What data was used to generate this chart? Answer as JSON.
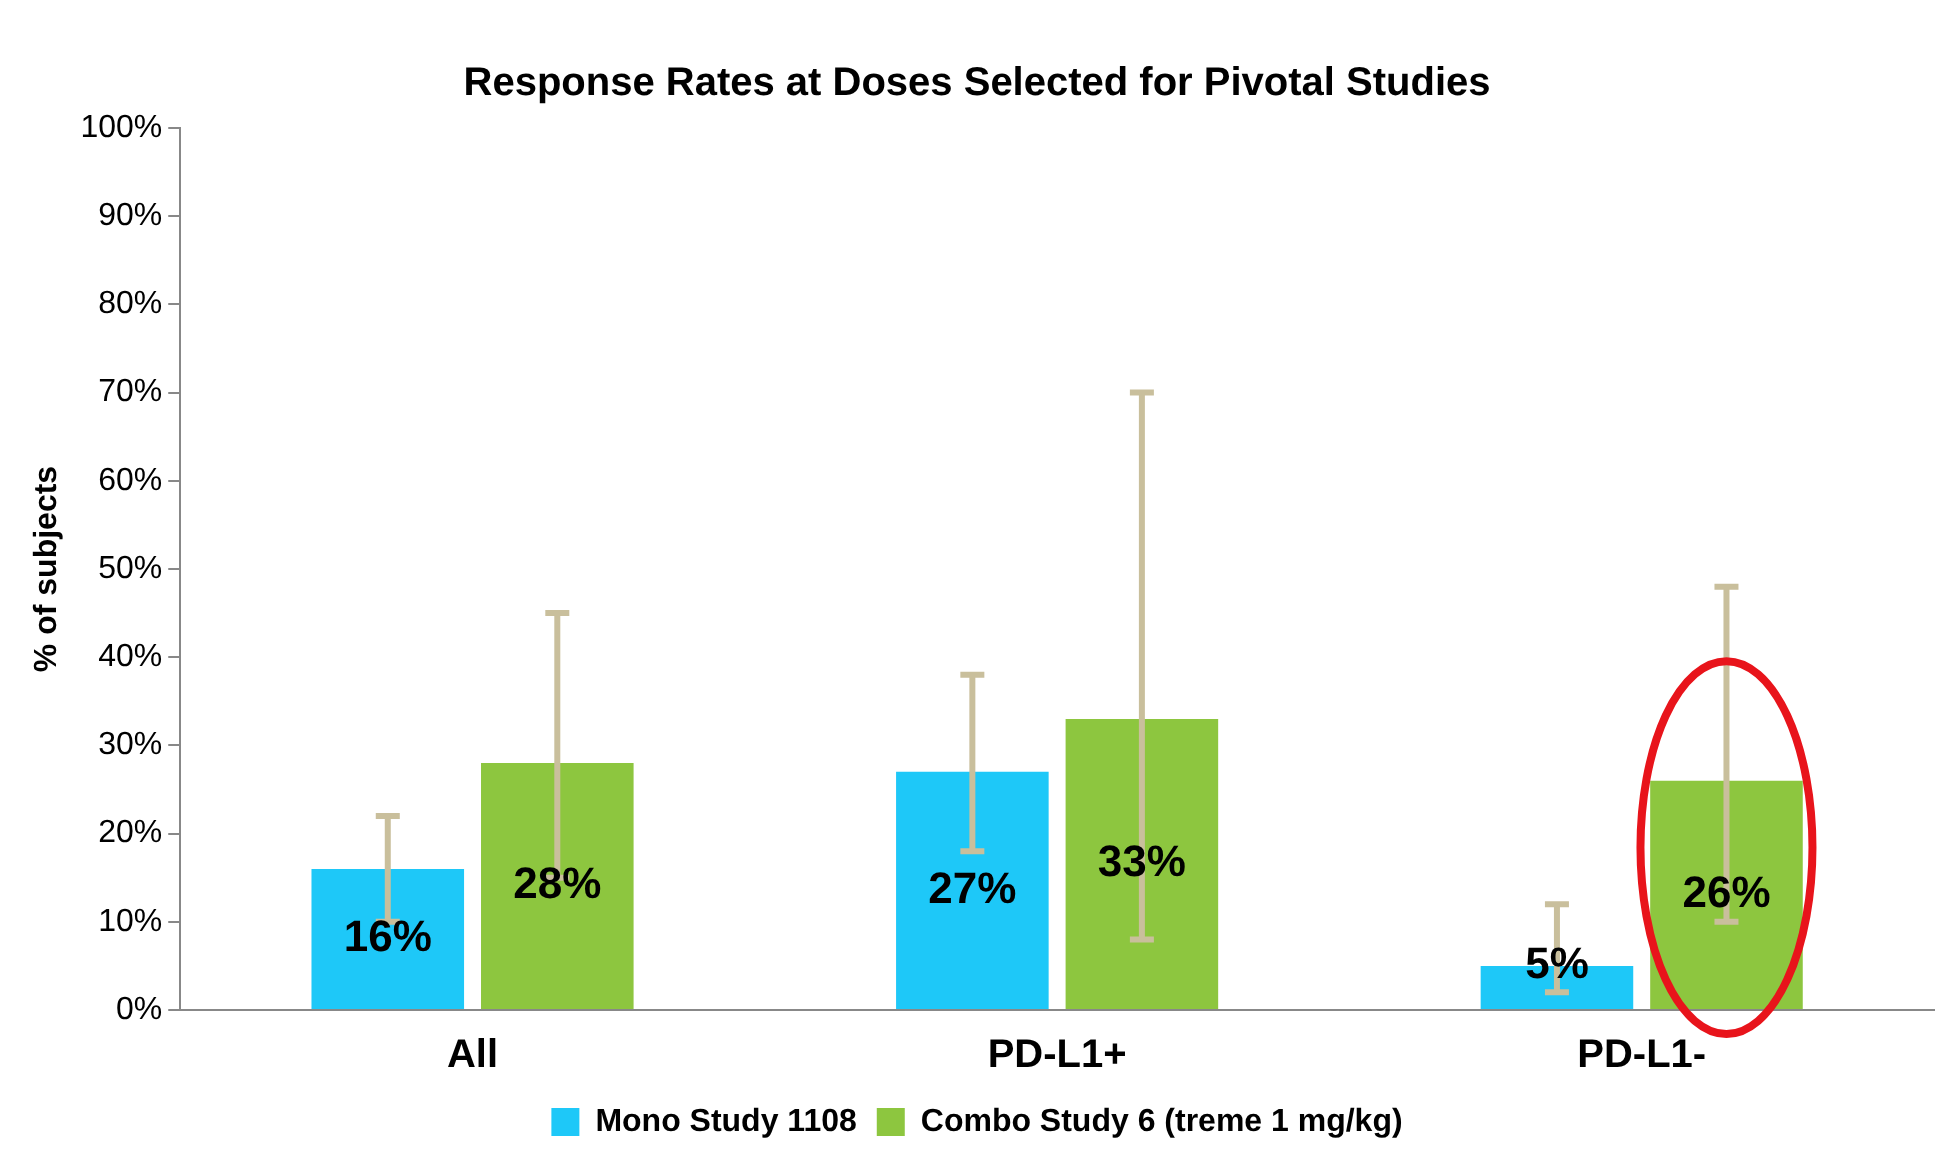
{
  "chart_data": {
    "type": "bar",
    "title": "Response Rates at Doses Selected for Pivotal Studies",
    "ylabel": "% of subjects",
    "categories": [
      "All",
      "PD-L1+",
      "PD-L1-"
    ],
    "series": [
      {
        "name": "Mono Study 1108",
        "color": "#1ec8f8",
        "values": [
          16,
          27,
          5
        ],
        "value_labels": [
          "16%",
          "27%",
          "5%"
        ],
        "errors": [
          [
            10,
            22
          ],
          [
            18,
            38
          ],
          [
            2,
            12
          ]
        ]
      },
      {
        "name": "Combo Study 6 (treme 1 mg/kg)",
        "color": "#8dc63f",
        "values": [
          28,
          33,
          26
        ],
        "value_labels": [
          "28%",
          "33%",
          "26%"
        ],
        "errors": [
          [
            15,
            45
          ],
          [
            8,
            70
          ],
          [
            10,
            48
          ]
        ]
      }
    ],
    "ylim": [
      0,
      100
    ],
    "yticks": [
      {
        "value": 0,
        "label": "0%"
      },
      {
        "value": 10,
        "label": "10%"
      },
      {
        "value": 20,
        "label": "20%"
      },
      {
        "value": 30,
        "label": "30%"
      },
      {
        "value": 40,
        "label": "40%"
      },
      {
        "value": 50,
        "label": "50%"
      },
      {
        "value": 60,
        "label": "60%"
      },
      {
        "value": 70,
        "label": "70%"
      },
      {
        "value": 80,
        "label": "80%"
      },
      {
        "value": 90,
        "label": "90%"
      },
      {
        "value": 100,
        "label": "100%"
      }
    ],
    "grid": false,
    "legend": "bottom"
  }
}
